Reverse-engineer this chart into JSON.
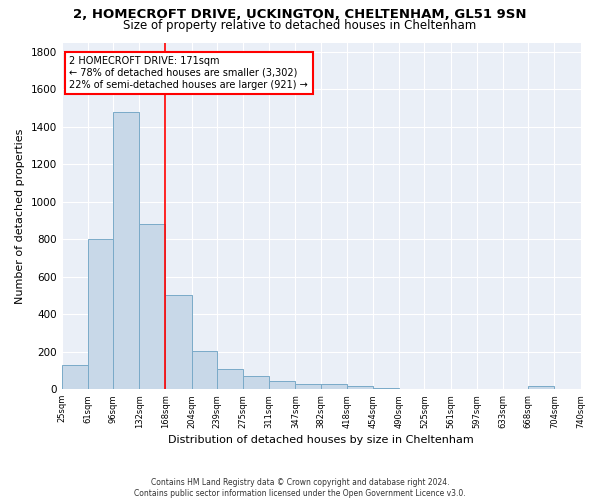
{
  "title1": "2, HOMECROFT DRIVE, UCKINGTON, CHELTENHAM, GL51 9SN",
  "title2": "Size of property relative to detached houses in Cheltenham",
  "xlabel": "Distribution of detached houses by size in Cheltenham",
  "ylabel": "Number of detached properties",
  "footer1": "Contains HM Land Registry data © Crown copyright and database right 2024.",
  "footer2": "Contains public sector information licensed under the Open Government Licence v3.0.",
  "bar_left_edges": [
    25,
    61,
    96,
    132,
    168,
    204,
    239,
    275,
    311,
    347,
    382,
    418,
    454,
    490,
    525,
    561,
    597,
    633,
    668,
    704
  ],
  "bar_widths": [
    36,
    35,
    36,
    36,
    36,
    35,
    36,
    36,
    36,
    35,
    36,
    36,
    36,
    35,
    36,
    36,
    36,
    35,
    36,
    36
  ],
  "bar_heights": [
    130,
    800,
    1480,
    880,
    500,
    205,
    110,
    70,
    45,
    30,
    30,
    18,
    8,
    3,
    1,
    1,
    0,
    0,
    15,
    0
  ],
  "bar_color": "#c8d8e8",
  "bar_edge_color": "#7aaac8",
  "property_line_x": 168,
  "annotation_text1": "2 HOMECROFT DRIVE: 171sqm",
  "annotation_text2": "← 78% of detached houses are smaller (3,302)",
  "annotation_text3": "22% of semi-detached houses are larger (921) →",
  "annotation_box_color": "white",
  "annotation_box_edge_color": "red",
  "vline_color": "red",
  "tick_labels": [
    "25sqm",
    "61sqm",
    "96sqm",
    "132sqm",
    "168sqm",
    "204sqm",
    "239sqm",
    "275sqm",
    "311sqm",
    "347sqm",
    "382sqm",
    "418sqm",
    "454sqm",
    "490sqm",
    "525sqm",
    "561sqm",
    "597sqm",
    "633sqm",
    "668sqm",
    "704sqm",
    "740sqm"
  ],
  "ylim": [
    0,
    1850
  ],
  "xlim": [
    25,
    740
  ],
  "yticks": [
    0,
    200,
    400,
    600,
    800,
    1000,
    1200,
    1400,
    1600,
    1800
  ],
  "background_color": "#eaeff7",
  "grid_color": "white",
  "title1_fontsize": 9.5,
  "title2_fontsize": 8.5,
  "ylabel_fontsize": 8,
  "xlabel_fontsize": 8
}
